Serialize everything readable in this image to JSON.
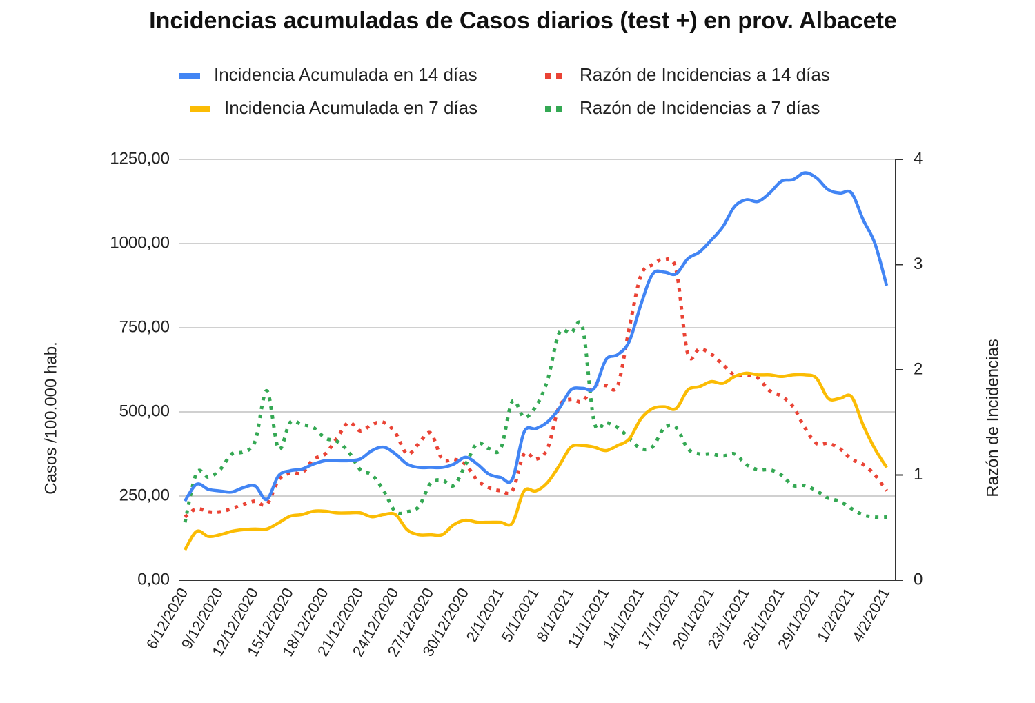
{
  "chart_data": {
    "type": "line",
    "title": "Incidencias acumuladas de Casos diarios (test +) en prov. Albacete",
    "y_label": "Casos /100.000 hab.",
    "y2_label": "Razón de Incidencias",
    "categories": [
      "6/12/2020",
      null,
      null,
      "9/12/2020",
      null,
      null,
      "12/12/2020",
      null,
      null,
      "15/12/2020",
      null,
      null,
      "18/12/2020",
      null,
      null,
      "21/12/2020",
      null,
      null,
      "24/12/2020",
      null,
      null,
      "27/12/2020",
      null,
      null,
      "30/12/2020",
      null,
      null,
      "2/1/2021",
      null,
      null,
      "5/1/2021",
      null,
      null,
      "8/1/2021",
      null,
      null,
      "11/1/2021",
      null,
      null,
      "14/1/2021",
      null,
      null,
      "17/1/2021",
      null,
      null,
      "20/1/2021",
      null,
      null,
      "23/1/2021",
      null,
      null,
      "26/1/2021",
      null,
      null,
      "29/1/2021",
      null,
      null,
      "1/2/2021",
      null,
      null,
      "4/2/2021"
    ],
    "series": [
      {
        "name": "Incidencia Acumulada en 14 días",
        "color": "#4285f4",
        "dash": false,
        "values": [
          235,
          285,
          270,
          265,
          262,
          275,
          280,
          240,
          310,
          325,
          330,
          345,
          355,
          355,
          355,
          360,
          385,
          395,
          375,
          345,
          335,
          335,
          335,
          345,
          365,
          345,
          315,
          305,
          300,
          440,
          450,
          470,
          510,
          565,
          570,
          570,
          655,
          670,
          710,
          820,
          910,
          915,
          910,
          955,
          975,
          1010,
          1050,
          1110,
          1130,
          1125,
          1150,
          1185,
          1190,
          1210,
          1195,
          1160,
          1150,
          1150,
          1070,
          1000,
          875
        ]
      },
      {
        "name": "Incidencia Acumulada en 7 días",
        "color": "#fbbc04",
        "dash": false,
        "values": [
          90,
          145,
          130,
          135,
          145,
          150,
          152,
          152,
          170,
          190,
          195,
          205,
          205,
          200,
          200,
          200,
          188,
          195,
          195,
          150,
          135,
          135,
          135,
          165,
          178,
          172,
          172,
          172,
          170,
          265,
          265,
          290,
          340,
          395,
          400,
          395,
          385,
          400,
          420,
          480,
          510,
          515,
          510,
          565,
          575,
          590,
          585,
          605,
          615,
          610,
          610,
          605,
          610,
          610,
          600,
          540,
          540,
          545,
          460,
          390,
          335
        ]
      },
      {
        "name": "Razón de Incidencias a 14 días",
        "color": "#ea4335",
        "dash": true,
        "axis": "y2",
        "values": [
          0.6,
          0.68,
          0.65,
          0.65,
          0.68,
          0.72,
          0.75,
          0.72,
          0.95,
          1.02,
          1.02,
          1.15,
          1.2,
          1.35,
          1.5,
          1.42,
          1.48,
          1.5,
          1.4,
          1.2,
          1.3,
          1.4,
          1.15,
          1.15,
          1.1,
          0.95,
          0.88,
          0.85,
          0.85,
          1.2,
          1.15,
          1.25,
          1.65,
          1.72,
          1.7,
          1.85,
          1.85,
          1.85,
          2.4,
          2.9,
          3.0,
          3.05,
          2.95,
          2.15,
          2.2,
          2.15,
          2.05,
          1.95,
          1.95,
          1.92,
          1.8,
          1.75,
          1.65,
          1.45,
          1.3,
          1.3,
          1.25,
          1.15,
          1.1,
          1.0,
          0.85
        ]
      },
      {
        "name": "Razón de Incidencias a 7 días",
        "color": "#34a853",
        "dash": true,
        "axis": "y2",
        "values": [
          0.55,
          1.02,
          0.98,
          1.05,
          1.2,
          1.22,
          1.32,
          1.8,
          1.25,
          1.5,
          1.48,
          1.45,
          1.35,
          1.32,
          1.22,
          1.05,
          1.0,
          0.85,
          0.65,
          0.65,
          0.7,
          0.92,
          0.95,
          0.9,
          1.1,
          1.3,
          1.25,
          1.25,
          1.7,
          1.55,
          1.65,
          1.9,
          2.35,
          2.35,
          2.4,
          1.5,
          1.5,
          1.45,
          1.35,
          1.25,
          1.27,
          1.45,
          1.45,
          1.25,
          1.2,
          1.2,
          1.18,
          1.2,
          1.1,
          1.05,
          1.05,
          1.0,
          0.9,
          0.9,
          0.85,
          0.78,
          0.75,
          0.68,
          0.62,
          0.6,
          0.6
        ]
      }
    ],
    "ylim": [
      0,
      1250
    ],
    "yticks": [
      {
        "value": 0,
        "label": "0,00"
      },
      {
        "value": 250,
        "label": "250,00"
      },
      {
        "value": 500,
        "label": "500,00"
      },
      {
        "value": 750,
        "label": "750,00"
      },
      {
        "value": 1000,
        "label": "1000,00"
      },
      {
        "value": 1250,
        "label": "1250,00"
      }
    ],
    "y2lim": [
      0,
      4
    ],
    "y2ticks": [
      0,
      1,
      2,
      3,
      4
    ],
    "grid": true
  }
}
